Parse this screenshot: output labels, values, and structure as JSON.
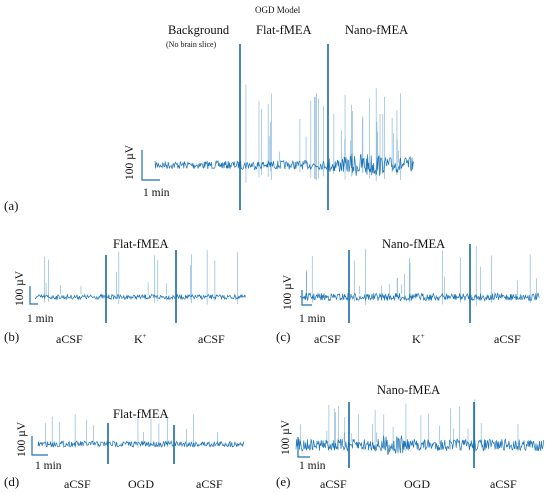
{
  "figure": {
    "accent_color": "#1a73b8",
    "marker_color": "#176aa6"
  },
  "chart_data": [
    {
      "type": "line",
      "panel_label": "(a)",
      "top_label": "OGD Model",
      "segments": [
        {
          "label": "Background",
          "sublabel": "(No brain slice)"
        },
        {
          "label": "Flat-fMEA"
        },
        {
          "label": "Nano-fMEA"
        }
      ],
      "scale_bar": {
        "y_label": "100 µV",
        "x_label": "1 min"
      },
      "series": [
        {
          "values": []
        }
      ]
    },
    {
      "type": "line",
      "panel_label": "(b)",
      "title": "Flat-fMEA",
      "conditions": [
        "aCSF",
        "K+",
        "aCSF"
      ],
      "scale_bar": {
        "y_label": "100 µV",
        "x_label": "1 min"
      },
      "series": [
        {
          "values": []
        }
      ]
    },
    {
      "type": "line",
      "panel_label": "(c)",
      "title": "Nano-fMEA",
      "conditions": [
        "aCSF",
        "K+",
        "aCSF"
      ],
      "scale_bar": {
        "y_label": "100 µV",
        "x_label": "1 min"
      },
      "series": [
        {
          "values": []
        }
      ]
    },
    {
      "type": "line",
      "panel_label": "(d)",
      "title": "Flat-fMEA",
      "conditions": [
        "aCSF",
        "OGD",
        "aCSF"
      ],
      "scale_bar": {
        "y_label": "100 µV",
        "x_label": "1 min"
      },
      "series": [
        {
          "values": []
        }
      ]
    },
    {
      "type": "line",
      "panel_label": "(e)",
      "title": "Nano-fMEA",
      "conditions": [
        "aCSF",
        "OGD",
        "aCSF"
      ],
      "scale_bar": {
        "y_label": "100 µV",
        "x_label": "1 min"
      },
      "series": [
        {
          "values": []
        }
      ]
    }
  ]
}
